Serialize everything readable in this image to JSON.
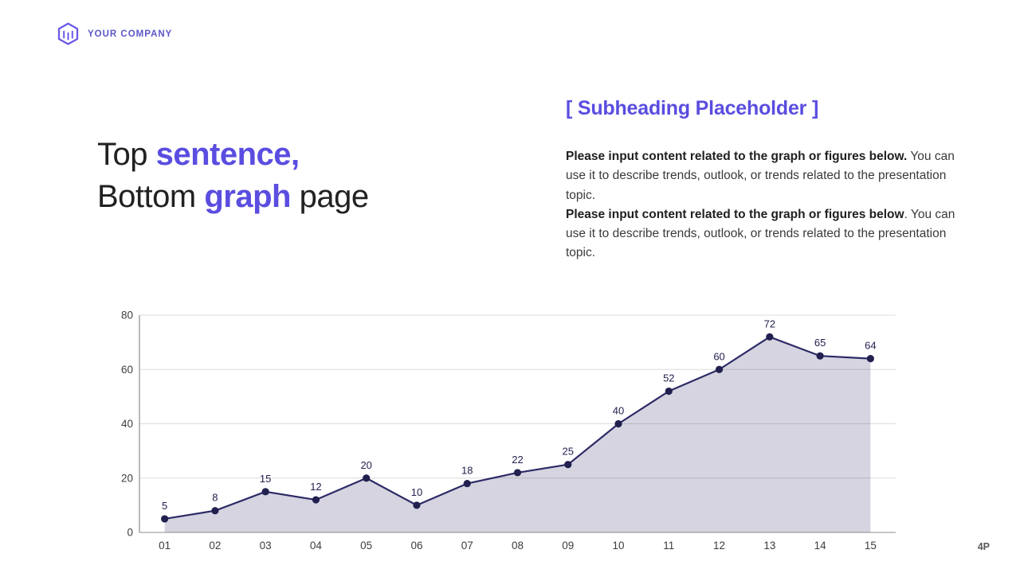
{
  "logo": {
    "company_name": "YOUR COMPANY"
  },
  "title": {
    "line1_regular": "Top ",
    "line1_accent": "sentence,",
    "line2_regular_start": "Bottom ",
    "line2_accent": "graph",
    "line2_regular_end": " page"
  },
  "subheading": "[ Subheading Placeholder ]",
  "paragraphs": [
    {
      "bold": "Please input content related to the graph or figures below.",
      "regular": " You can use it to describe trends, outlook, or trends related to the presentation topic."
    },
    {
      "bold": "Please input content related to the graph or figures below",
      "regular": ". You can use it to describe trends, outlook, or trends related to the presentation topic."
    }
  ],
  "page_number": "4P",
  "colors": {
    "accent": "#5a4de0",
    "logo": "#5b55c8",
    "line": "#2d2a66",
    "marker": "#21204f",
    "grid": "#dcdcdc",
    "axis": "#8c8c8c",
    "tick": "#3d3d3d",
    "data_label": "#22204f"
  },
  "chart_data": {
    "type": "area",
    "title": "",
    "xlabel": "",
    "ylabel": "",
    "categories": [
      "01",
      "02",
      "03",
      "04",
      "05",
      "06",
      "07",
      "08",
      "09",
      "10",
      "11",
      "12",
      "13",
      "14",
      "15"
    ],
    "values": [
      5,
      8,
      15,
      12,
      20,
      10,
      18,
      22,
      25,
      40,
      52,
      60,
      72,
      65,
      64
    ],
    "ylim": [
      0,
      80
    ],
    "yticks": [
      0,
      20,
      40,
      60,
      80
    ],
    "grid": true,
    "legend": "none",
    "data_labels": true,
    "area_opacity": 0.2
  }
}
